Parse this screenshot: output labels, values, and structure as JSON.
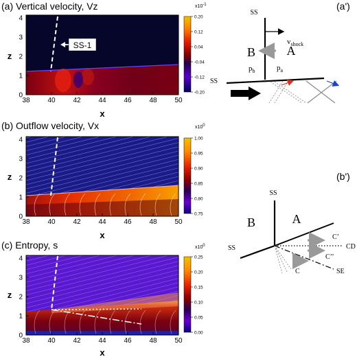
{
  "panels": [
    {
      "id": "a",
      "title": "(a) Vertical velocity, Vz",
      "xlabel": "x",
      "ylabel": "z",
      "x_ticks": [
        "38",
        "40",
        "42",
        "44",
        "46",
        "48",
        "50"
      ],
      "z_ticks": [
        "0",
        "1",
        "2",
        "3",
        "4"
      ],
      "annotation": "SS-1",
      "colorbar": {
        "exponent": "x10",
        "exponent_power": "-1",
        "ticks": [
          "0.20",
          "0.12",
          "0.04",
          "-0.04",
          "-0.12",
          "-0.20"
        ],
        "colors": [
          "#f2c200",
          "#ff7a00",
          "#e81e00",
          "#8a0000",
          "#24004a",
          "#5a00c8",
          "#00005a"
        ]
      }
    },
    {
      "id": "b",
      "title": "(b) Outflow velocity, Vx",
      "xlabel": "x",
      "ylabel": "z",
      "x_ticks": [
        "38",
        "40",
        "42",
        "44",
        "46",
        "48",
        "50"
      ],
      "z_ticks": [
        "0",
        "1",
        "2",
        "3",
        "4"
      ],
      "colorbar": {
        "exponent": "x10",
        "exponent_power": "0",
        "ticks": [
          "1.00",
          "0.95",
          "0.90",
          "0.85",
          "0.80",
          "0.75"
        ],
        "colors": [
          "#f2c200",
          "#ff8a00",
          "#e82000",
          "#8a0000",
          "#2a0055",
          "#6a00d0",
          "#0a0080"
        ]
      }
    },
    {
      "id": "c",
      "title": "(c) Entropy, s",
      "xlabel": "x",
      "ylabel": "z",
      "x_ticks": [
        "38",
        "40",
        "42",
        "44",
        "46",
        "48",
        "50"
      ],
      "z_ticks": [
        "0",
        "1",
        "2",
        "3",
        "4"
      ],
      "colorbar": {
        "exponent": "x10",
        "exponent_power": "0",
        "ticks": [
          "0.25",
          "0.20",
          "0.15",
          "0.10",
          "0.05",
          "0.00"
        ],
        "colors": [
          "#f2c200",
          "#ff8a00",
          "#e81e00",
          "#8a0000",
          "#2a0055",
          "#6a00d0",
          "#0a0080"
        ]
      }
    }
  ],
  "diagram_a": {
    "label": "(a')",
    "ss_top": "SS",
    "ss_left": "SS",
    "vshock": "v",
    "vshock_sub": "shock",
    "region_b": "B",
    "region_a": "A",
    "pb": "p",
    "pb_sub": "b",
    "pa": "p",
    "pa_sub": "a",
    "colors": {
      "red_arrow": "#e03020",
      "blue_arrow": "#2040d0",
      "gray": "#999999"
    }
  },
  "diagram_b": {
    "label": "(b')",
    "ss_top": "SS",
    "ss_left": "SS",
    "region_b": "B",
    "region_a": "A",
    "c_prime": "C’",
    "cd": "CD",
    "c_double": "C’’",
    "se": "SE",
    "c": "C"
  },
  "chart_data": [
    {
      "type": "heatmap",
      "title": "(a) Vertical velocity, Vz",
      "xlabel": "x",
      "ylabel": "z",
      "xlim": [
        38,
        50
      ],
      "ylim": [
        0,
        4
      ],
      "colorbar_range": [
        -0.2,
        0.2
      ],
      "colorbar_scale": "x10^-1",
      "layer_top_z": [
        [
          38,
          1.0
        ],
        [
          50,
          1.3
        ]
      ],
      "annotation": "SS-1"
    },
    {
      "type": "heatmap",
      "title": "(b) Outflow velocity, Vx",
      "xlabel": "x",
      "ylabel": "z",
      "xlim": [
        38,
        50
      ],
      "ylim": [
        0,
        4
      ],
      "colorbar_range": [
        0.75,
        1.0
      ],
      "colorbar_scale": "x10^0"
    },
    {
      "type": "heatmap",
      "title": "(c) Entropy, s",
      "xlabel": "x",
      "ylabel": "z",
      "xlim": [
        38,
        50
      ],
      "ylim": [
        0,
        4
      ],
      "colorbar_range": [
        0.0,
        0.25
      ],
      "colorbar_scale": "x10^0"
    }
  ]
}
